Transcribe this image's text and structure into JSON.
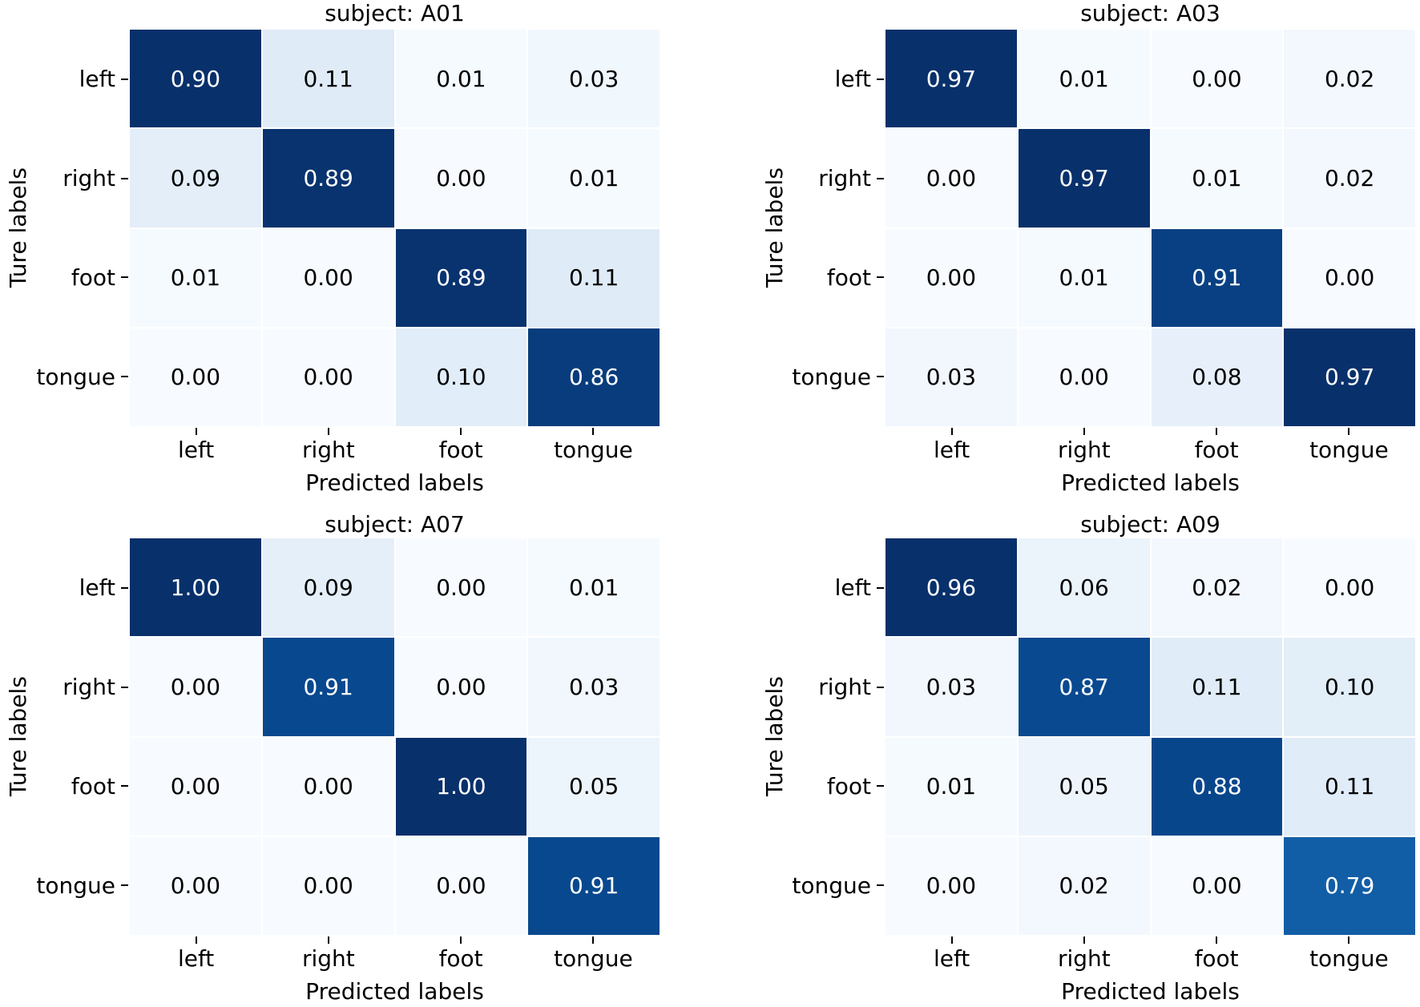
{
  "figure": {
    "background_color": "#ffffff",
    "text_color": "#000000",
    "grid_line_color": "#ffffff",
    "colormap": "Blues",
    "colormap_stops": [
      "#f7fbff",
      "#deebf7",
      "#c6dbef",
      "#9ecae1",
      "#6baed6",
      "#4292c6",
      "#2171b5",
      "#08519c",
      "#08306b"
    ],
    "annot_text_light": "#ffffff",
    "annot_text_dark": "#000000",
    "layout": "2x2 grid of confusion-matrix heatmaps, no legend, no colorbar, no gridlines outside cells"
  },
  "chart_data": [
    {
      "type": "heatmap",
      "title": "subject: A01",
      "subject": "A01",
      "xlabel": "Predicted labels",
      "ylabel": "Ture labels",
      "x_ticklabels": [
        "left",
        "right",
        "foot",
        "tongue"
      ],
      "y_ticklabels": [
        "left",
        "right",
        "foot",
        "tongue"
      ],
      "value_format": "2-decimals",
      "color_scale": {
        "vmin": 0.0,
        "vmax": 0.9
      },
      "values": [
        [
          0.9,
          0.11,
          0.01,
          0.03
        ],
        [
          0.09,
          0.89,
          0.0,
          0.01
        ],
        [
          0.01,
          0.0,
          0.89,
          0.11
        ],
        [
          0.0,
          0.0,
          0.1,
          0.86
        ]
      ]
    },
    {
      "type": "heatmap",
      "title": "subject: A03",
      "subject": "A03",
      "xlabel": "Predicted labels",
      "ylabel": "Ture labels",
      "x_ticklabels": [
        "left",
        "right",
        "foot",
        "tongue"
      ],
      "y_ticklabels": [
        "left",
        "right",
        "foot",
        "tongue"
      ],
      "value_format": "2-decimals",
      "color_scale": {
        "vmin": 0.0,
        "vmax": 0.97
      },
      "values": [
        [
          0.97,
          0.01,
          0.0,
          0.02
        ],
        [
          0.0,
          0.97,
          0.01,
          0.02
        ],
        [
          0.0,
          0.01,
          0.91,
          0.0
        ],
        [
          0.03,
          0.0,
          0.08,
          0.97
        ]
      ]
    },
    {
      "type": "heatmap",
      "title": "subject: A07",
      "subject": "A07",
      "xlabel": "Predicted labels",
      "ylabel": "Ture labels",
      "x_ticklabels": [
        "left",
        "right",
        "foot",
        "tongue"
      ],
      "y_ticklabels": [
        "left",
        "right",
        "foot",
        "tongue"
      ],
      "value_format": "2-decimals",
      "color_scale": {
        "vmin": 0.0,
        "vmax": 1.0
      },
      "values": [
        [
          1.0,
          0.09,
          0.0,
          0.01
        ],
        [
          0.0,
          0.91,
          0.0,
          0.03
        ],
        [
          0.0,
          0.0,
          1.0,
          0.05
        ],
        [
          0.0,
          0.0,
          0.0,
          0.91
        ]
      ]
    },
    {
      "type": "heatmap",
      "title": "subject: A09",
      "subject": "A09",
      "xlabel": "Predicted labels",
      "ylabel": "Ture labels",
      "x_ticklabels": [
        "left",
        "right",
        "foot",
        "tongue"
      ],
      "y_ticklabels": [
        "left",
        "right",
        "foot",
        "tongue"
      ],
      "value_format": "2-decimals",
      "color_scale": {
        "vmin": 0.0,
        "vmax": 0.96
      },
      "values": [
        [
          0.96,
          0.06,
          0.02,
          0.0
        ],
        [
          0.03,
          0.87,
          0.11,
          0.1
        ],
        [
          0.01,
          0.05,
          0.88,
          0.11
        ],
        [
          0.0,
          0.02,
          0.0,
          0.79
        ]
      ]
    }
  ]
}
